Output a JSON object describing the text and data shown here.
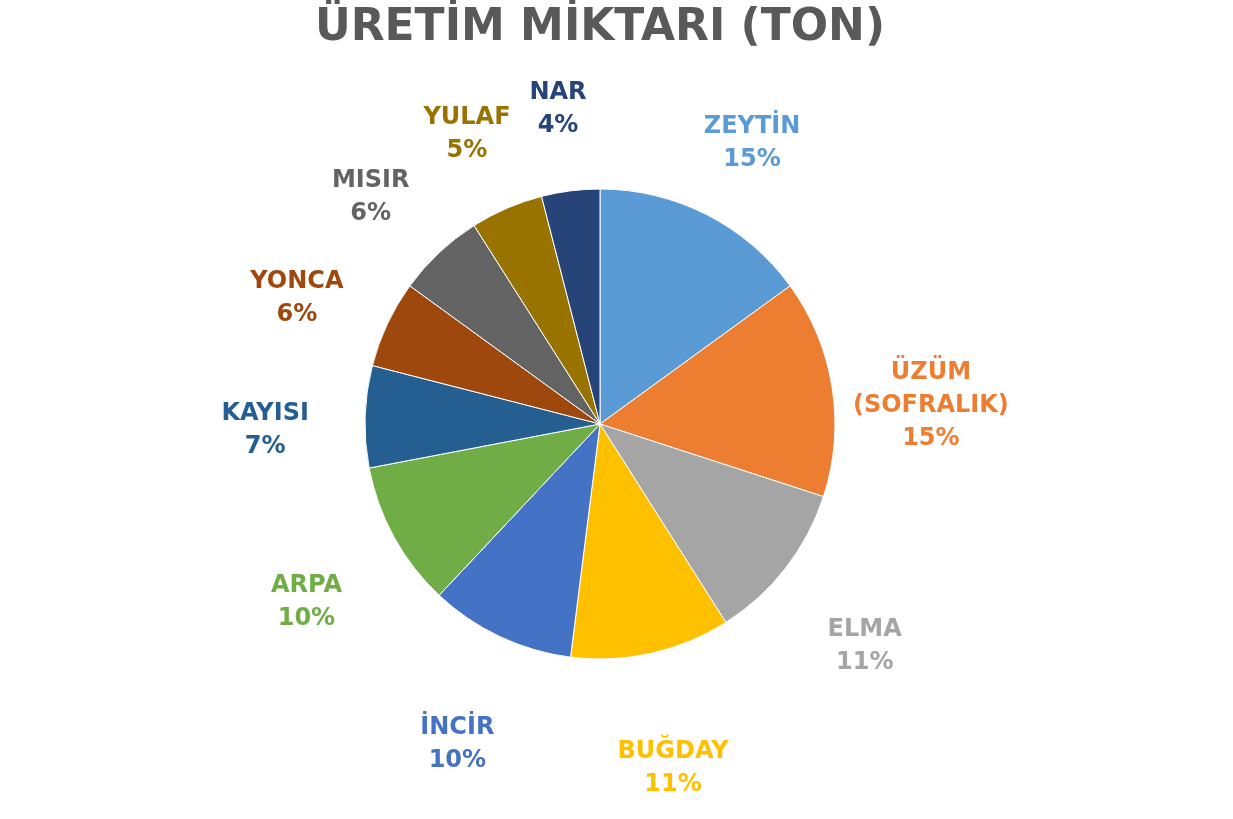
{
  "chart_data": {
    "type": "pie",
    "title": "ÜRETİM MİKTARI (TON)",
    "categories": [
      "ZEYTİN",
      "ÜZÜM (SOFRALIK)",
      "ELMA",
      "BUĞDAY",
      "İNCİR",
      "ARPA",
      "KAYISI",
      "YONCA",
      "MISIR",
      "YULAF",
      "NAR"
    ],
    "values": [
      15,
      15,
      11,
      11,
      10,
      10,
      7,
      6,
      6,
      5,
      4
    ],
    "value_labels": [
      "15%",
      "15%",
      "11%",
      "11%",
      "10%",
      "10%",
      "7%",
      "6%",
      "6%",
      "5%",
      "4%"
    ],
    "colors": [
      "#5b9bd5",
      "#ed7d31",
      "#a5a5a5",
      "#ffc000",
      "#4472c4",
      "#70ad47",
      "#255e91",
      "#9e480e",
      "#636363",
      "#997300",
      "#264478"
    ],
    "legend": false
  }
}
